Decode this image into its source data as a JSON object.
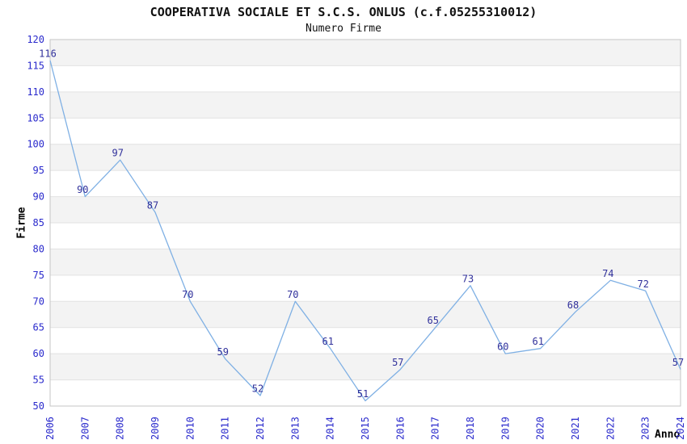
{
  "title": "COOPERATIVA SOCIALE ET S.C.S. ONLUS (c.f.05255310012)",
  "subtitle": "Numero Firme",
  "chart_data": {
    "type": "line",
    "title": "COOPERATIVA SOCIALE ET S.C.S. ONLUS (c.f.05255310012)",
    "subtitle": "Numero Firme",
    "x": [
      2006,
      2007,
      2008,
      2009,
      2010,
      2011,
      2012,
      2013,
      2014,
      2015,
      2016,
      2017,
      2018,
      2019,
      2020,
      2021,
      2022,
      2023,
      2024
    ],
    "values": [
      116,
      90,
      97,
      87,
      70,
      59,
      52,
      70,
      61,
      51,
      57,
      65,
      73,
      60,
      61,
      68,
      74,
      72,
      57
    ],
    "series_name": "Numero Firme",
    "xlabel": "Anno",
    "ylabel": "Firme",
    "ylim": [
      50,
      120
    ],
    "ytick_step": 5,
    "legend": "none",
    "grid": "horizontal-bands-alternating",
    "point_labels_visible": true,
    "colors": {
      "line": "#7fb0e4",
      "point_label": "#31319b",
      "tick": "#2a2acc",
      "band": "#f3f3f3",
      "gridline": "#e2e2e2",
      "border": "#c6c6c6",
      "background": "#ffffff",
      "title": "#111111"
    }
  }
}
